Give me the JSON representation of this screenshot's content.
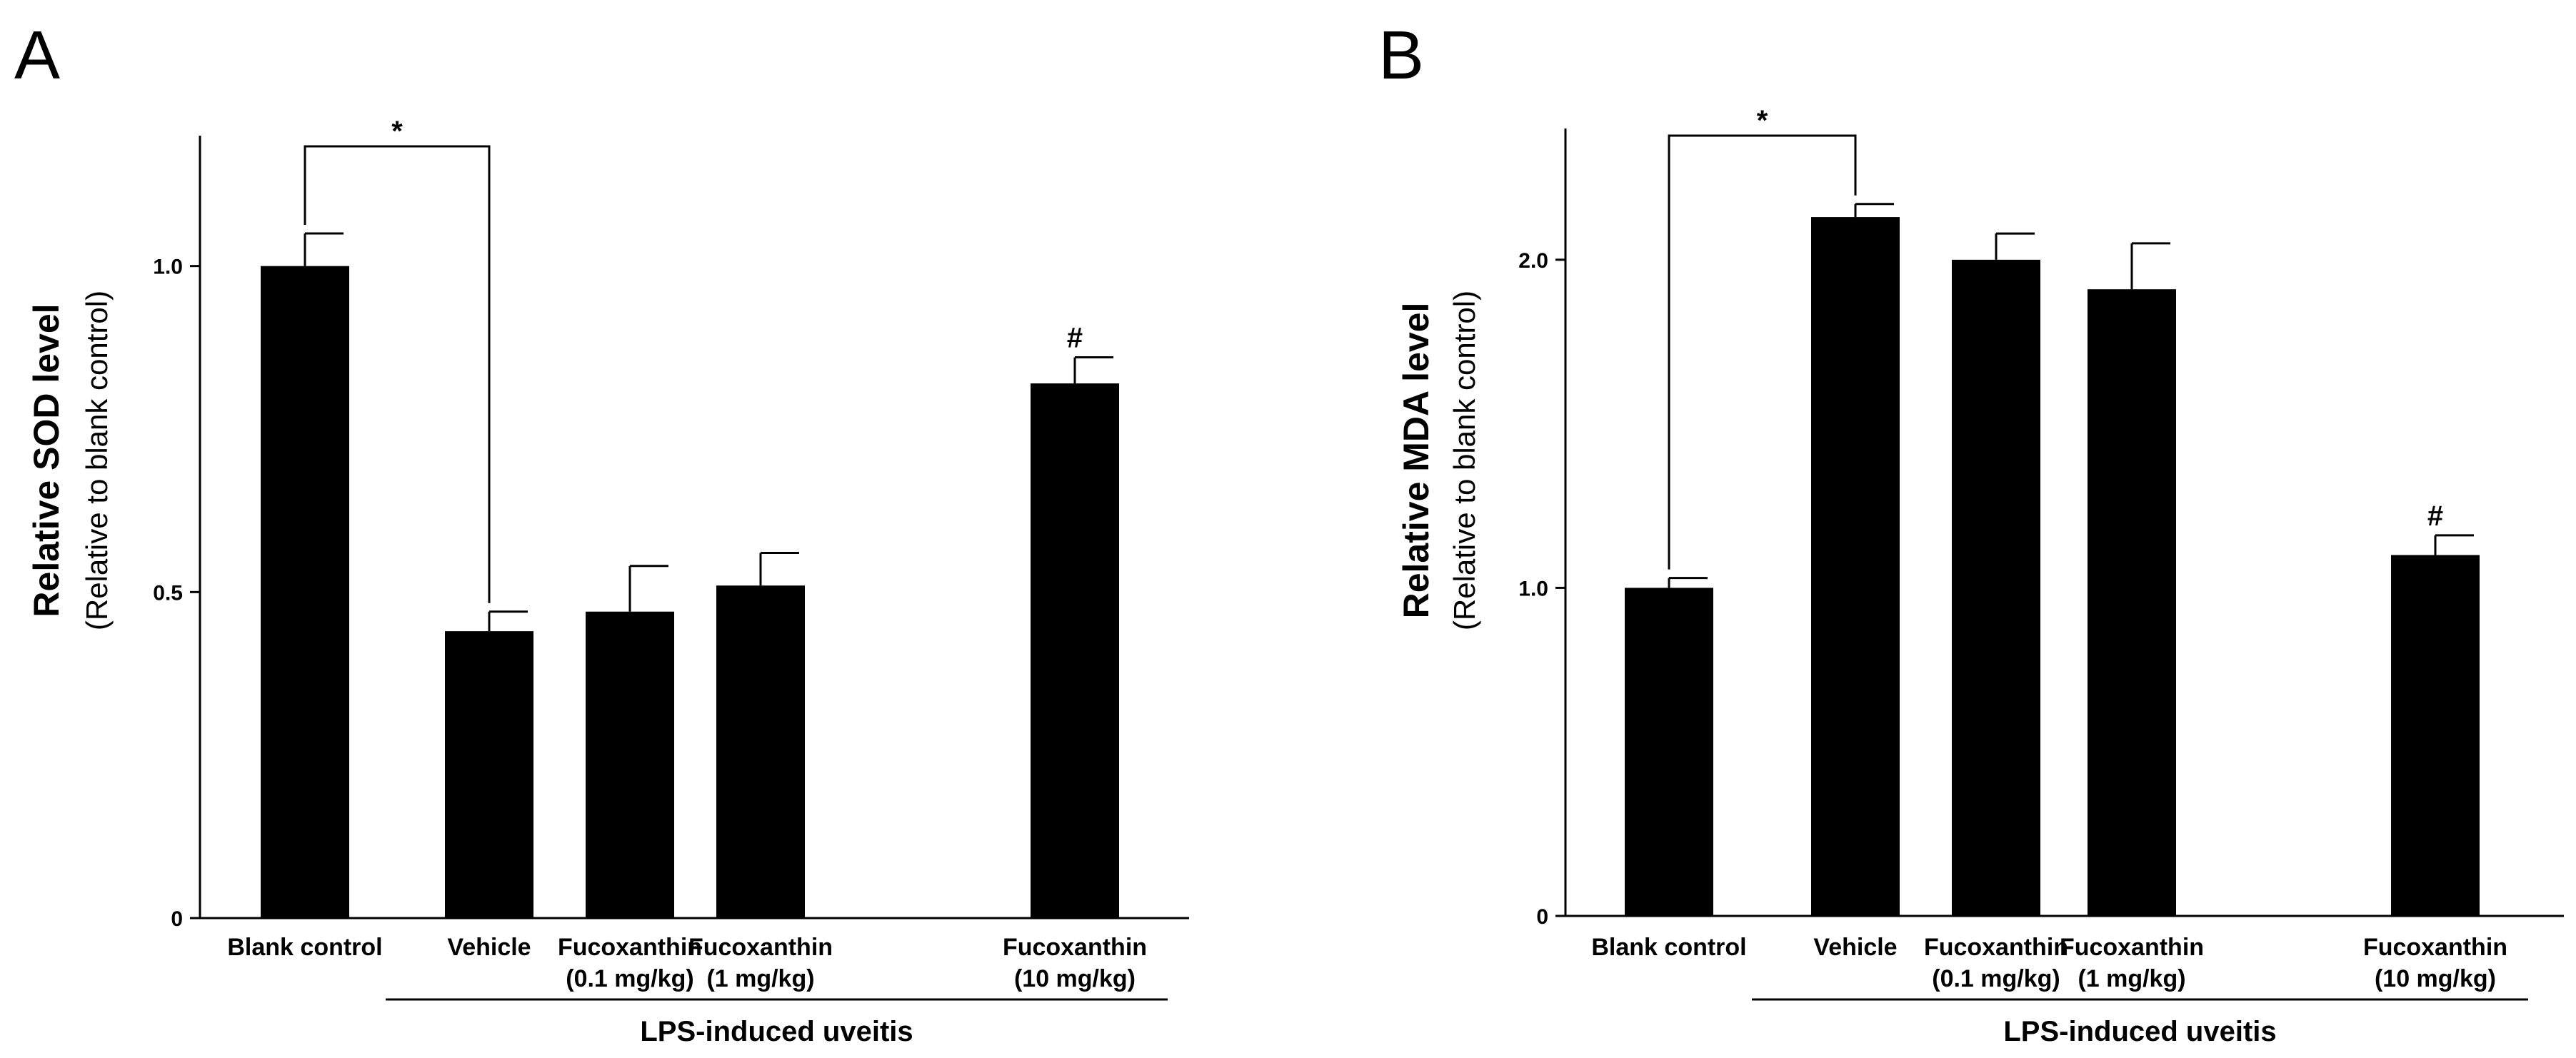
{
  "chart_data": [
    {
      "type": "bar",
      "panel": "A",
      "ylabel": "Relative SOD level",
      "ylabel_sub": "(Relative to blank control)",
      "ylim": [
        0,
        1.2
      ],
      "yticks": [
        0,
        0.5,
        1.0
      ],
      "ytick_labels": [
        "0",
        "0.5",
        "1.0"
      ],
      "categories": [
        [
          "Blank control"
        ],
        [
          "Vehicle"
        ],
        [
          "Fucoxanthin",
          "(0.1 mg/kg)"
        ],
        [
          "Fucoxanthin",
          "(1 mg/kg)"
        ],
        [
          "Fucoxanthin",
          "(10 mg/kg)"
        ]
      ],
      "values": [
        1.0,
        0.44,
        0.47,
        0.51,
        0.82
      ],
      "errors": [
        0.05,
        0.03,
        0.07,
        0.05,
        0.04
      ],
      "group_label": "LPS-induced uveitis",
      "group_span": [
        1,
        4
      ],
      "significance": {
        "from": 0,
        "to": 1,
        "label": "*"
      },
      "annotations": [
        {
          "index": 4,
          "label": "#"
        }
      ],
      "bar_color": "#000000"
    },
    {
      "type": "bar",
      "panel": "B",
      "ylabel": "Relative MDA level",
      "ylabel_sub": "(Relative to blank control)",
      "ylim": [
        0,
        2.4
      ],
      "yticks": [
        0,
        1.0,
        2.0
      ],
      "ytick_labels": [
        "0",
        "1.0",
        "2.0"
      ],
      "categories": [
        [
          "Blank control"
        ],
        [
          "Vehicle"
        ],
        [
          "Fucoxanthin",
          "(0.1 mg/kg)"
        ],
        [
          "Fucoxanthin",
          "(1 mg/kg)"
        ],
        [
          "Fucoxanthin",
          "(10 mg/kg)"
        ]
      ],
      "values": [
        1.0,
        2.13,
        2.0,
        1.91,
        1.1
      ],
      "errors": [
        0.03,
        0.04,
        0.08,
        0.14,
        0.06
      ],
      "group_label": "LPS-induced uveitis",
      "group_span": [
        1,
        4
      ],
      "significance": {
        "from": 0,
        "to": 1,
        "label": "*"
      },
      "annotations": [
        {
          "index": 4,
          "label": "#"
        }
      ],
      "bar_color": "#000000"
    }
  ]
}
